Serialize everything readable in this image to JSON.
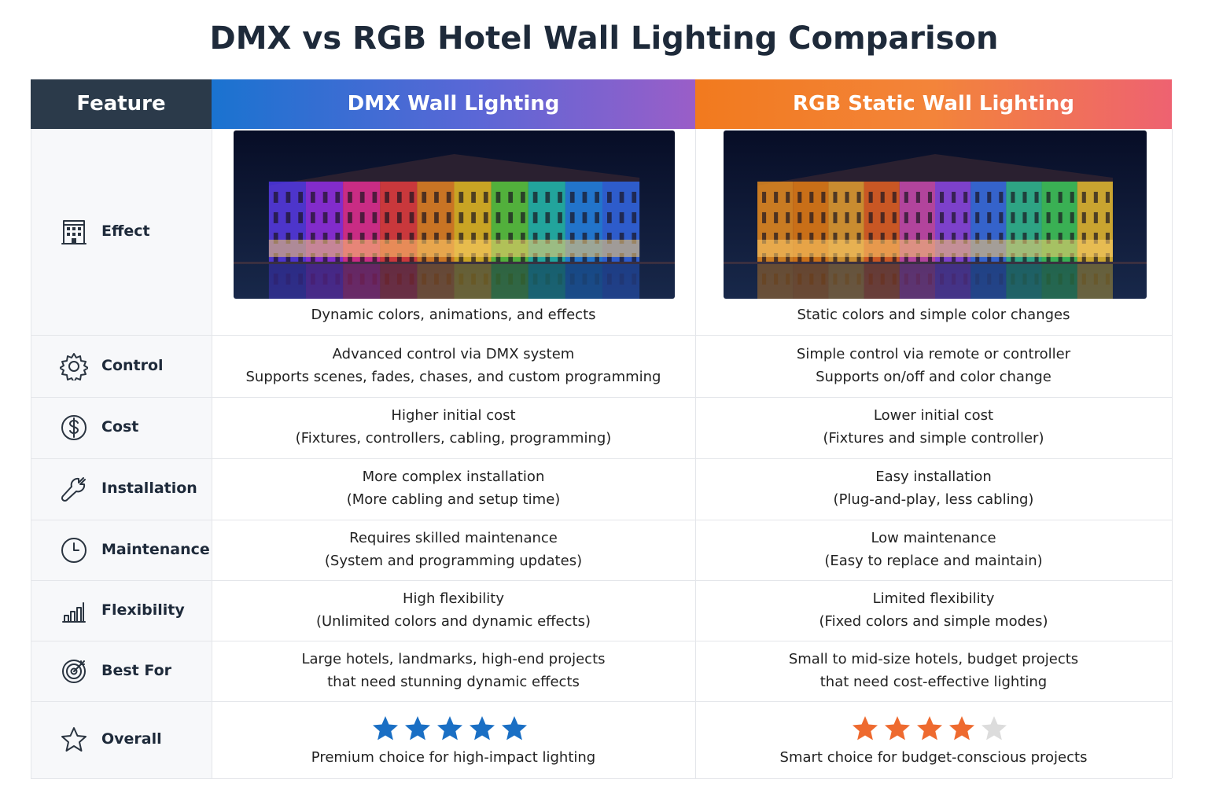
{
  "title": "DMX vs RGB Hotel Wall Lighting Comparison",
  "table": {
    "header": [
      "Feature",
      "DMX Wall Lighting",
      "RGB Static Wall Lighting"
    ],
    "rows": [
      {
        "feature": "Effect",
        "dmx": [
          "Dynamic colors, animations, and effects"
        ],
        "rgb": [
          "Static colors and simple color changes"
        ]
      },
      {
        "feature": "Control",
        "dmx": [
          "Advanced control via DMX system",
          "Supports scenes, fades, chases, and custom programming"
        ],
        "rgb": [
          "Simple control via remote or controller",
          "Supports on/off and color change"
        ]
      },
      {
        "feature": "Cost",
        "dmx": [
          "Higher initial cost",
          "(Fixtures, controllers, cabling, programming)"
        ],
        "rgb": [
          "Lower initial cost",
          "(Fixtures and simple controller)"
        ]
      },
      {
        "feature": "Installation",
        "dmx": [
          "More complex installation",
          "(More cabling and setup time)"
        ],
        "rgb": [
          "Easy installation",
          "(Plug-and-play, less cabling)"
        ]
      },
      {
        "feature": "Maintenance",
        "dmx": [
          "Requires skilled maintenance",
          "(System and programming updates)"
        ],
        "rgb": [
          "Low maintenance",
          "(Easy to replace and maintain)"
        ]
      },
      {
        "feature": "Flexibility",
        "dmx": [
          "High flexibility",
          "(Unlimited colors and dynamic effects)"
        ],
        "rgb": [
          "Limited flexibility",
          "(Fixed colors and simple modes)"
        ]
      },
      {
        "feature": "Best For",
        "dmx": [
          "Large hotels, landmarks, high-end projects",
          "that need stunning dynamic effects"
        ],
        "rgb": [
          "Small to mid-size hotels, budget projects",
          "that need cost-effective lighting"
        ]
      },
      {
        "feature": "Overall",
        "dmx": [
          "Premium choice for high-impact lighting"
        ],
        "rgb": [
          "Smart choice for budget-conscious projects"
        ],
        "dmx_rating": {
          "value": 5,
          "max": 5,
          "color": "#1a6fc4"
        },
        "rgb_rating": {
          "value": 4,
          "max": 5,
          "color": "#ee6a2f"
        }
      }
    ]
  }
}
